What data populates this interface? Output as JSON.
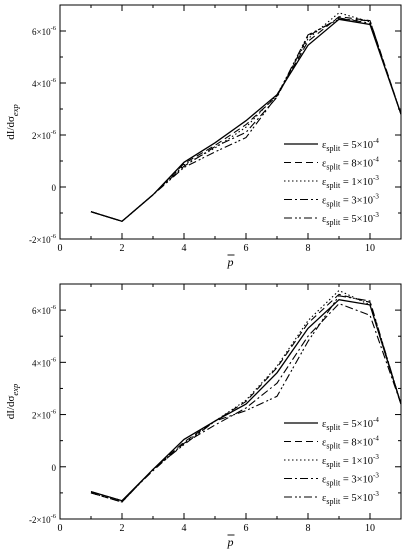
{
  "chart_data": [
    {
      "type": "line",
      "ylabel": "dI/dσ",
      "ylabel_sub": "exp",
      "xlabel": "p",
      "xlim": [
        0,
        11
      ],
      "ylim": [
        -2e-06,
        7e-06
      ],
      "xticks": [
        0,
        2,
        4,
        6,
        8,
        10
      ],
      "yticks": [
        -2e-06,
        0,
        2e-06,
        4e-06,
        6e-06
      ],
      "ytick_labels": [
        {
          "mant": "-2×10",
          "exp": "-6"
        },
        {
          "mant": "0",
          "exp": ""
        },
        {
          "mant": "2×10",
          "exp": "-6"
        },
        {
          "mant": "4×10",
          "exp": "-6"
        },
        {
          "mant": "6×10",
          "exp": "-6"
        }
      ],
      "legend_position": "bottom-right",
      "x": [
        1,
        2,
        3,
        4,
        5,
        6,
        7,
        8,
        9,
        10,
        11
      ],
      "series": [
        {
          "label": "ε",
          "sub": "split",
          "val": " = 5×10",
          "exp": "-4",
          "dash": "",
          "values": [
            -9.5e-07,
            -1.32e-06,
            -3e-07,
            9.5e-07,
            1.7e-06,
            2.55e-06,
            3.55e-06,
            5.45e-06,
            6.45e-06,
            6.25e-06,
            2.8e-06
          ]
        },
        {
          "label": "ε",
          "sub": "split",
          "val": " = 8×10",
          "exp": "-4",
          "dash": "7,4",
          "values": [
            -9.5e-07,
            -1.32e-06,
            -3e-07,
            9e-07,
            1.6e-06,
            2.4e-06,
            3.5e-06,
            5.6e-06,
            6.55e-06,
            6.4e-06,
            2.8e-06
          ]
        },
        {
          "label": "ε",
          "sub": "split",
          "val": " = 1×10",
          "exp": "-3",
          "dash": "1.5,2.5",
          "values": [
            -9.5e-07,
            -1.32e-06,
            -3e-07,
            8.5e-07,
            1.5e-06,
            2.3e-06,
            3.55e-06,
            5.7e-06,
            6.7e-06,
            6.35e-06,
            2.8e-06
          ]
        },
        {
          "label": "ε",
          "sub": "split",
          "val": " = 3×10",
          "exp": "-3",
          "dash": "8,3,2,3",
          "values": [
            -9.5e-07,
            -1.32e-06,
            -3e-07,
            8e-07,
            1.55e-06,
            2.1e-06,
            3.45e-06,
            5.8e-06,
            6.5e-06,
            6.3e-06,
            2.8e-06
          ]
        },
        {
          "label": "ε",
          "sub": "split",
          "val": " = 5×10",
          "exp": "-3",
          "dash": "8,3,2,2,2,3",
          "values": [
            -9.5e-07,
            -1.32e-06,
            -3e-07,
            7.5e-07,
            1.35e-06,
            1.9e-06,
            3.5e-06,
            5.85e-06,
            6.45e-06,
            6.4e-06,
            2.8e-06
          ]
        }
      ]
    },
    {
      "type": "line",
      "ylabel": "dI/dσ",
      "ylabel_sub": "exp",
      "xlabel": "p",
      "xlim": [
        0,
        11
      ],
      "ylim": [
        -2e-06,
        7e-06
      ],
      "xticks": [
        0,
        2,
        4,
        6,
        8,
        10
      ],
      "yticks": [
        -2e-06,
        0,
        2e-06,
        4e-06,
        6e-06
      ],
      "ytick_labels": [
        {
          "mant": "-2×10",
          "exp": "-6"
        },
        {
          "mant": "0",
          "exp": ""
        },
        {
          "mant": "2×10",
          "exp": "-6"
        },
        {
          "mant": "4×10",
          "exp": "-6"
        },
        {
          "mant": "6×10",
          "exp": "-6"
        }
      ],
      "legend_position": "bottom-right",
      "x": [
        1,
        2,
        3,
        4,
        5,
        6,
        7,
        8,
        9,
        10,
        11
      ],
      "series": [
        {
          "label": "ε",
          "sub": "split",
          "val": " = 5×10",
          "exp": "-4",
          "dash": "",
          "values": [
            -9.5e-07,
            -1.3e-06,
            -1e-07,
            1.05e-06,
            1.75e-06,
            2.4e-06,
            3.6e-06,
            5.3e-06,
            6.4e-06,
            6.2e-06,
            2.4e-06
          ]
        },
        {
          "label": "ε",
          "sub": "split",
          "val": " = 8×10",
          "exp": "-4",
          "dash": "7,4",
          "values": [
            -1e-06,
            -1.35e-06,
            -1e-07,
            9.5e-07,
            1.75e-06,
            2.5e-06,
            3.8e-06,
            5.5e-06,
            6.6e-06,
            6.3e-06,
            2.4e-06
          ]
        },
        {
          "label": "ε",
          "sub": "split",
          "val": " = 1×10",
          "exp": "-3",
          "dash": "1.5,2.5",
          "values": [
            -1e-06,
            -1.35e-06,
            -1e-07,
            9e-07,
            1.75e-06,
            2.55e-06,
            3.85e-06,
            5.6e-06,
            6.75e-06,
            6.2e-06,
            2.4e-06
          ]
        },
        {
          "label": "ε",
          "sub": "split",
          "val": " = 3×10",
          "exp": "-3",
          "dash": "8,3,2,3",
          "values": [
            -9.5e-07,
            -1.3e-06,
            -1.5e-07,
            9e-07,
            1.6e-06,
            2.25e-06,
            3.2e-06,
            5e-06,
            6.25e-06,
            5.8e-06,
            2.4e-06
          ]
        },
        {
          "label": "ε",
          "sub": "split",
          "val": " = 5×10",
          "exp": "-3",
          "dash": "8,3,2,2,2,3",
          "values": [
            -1e-06,
            -1.35e-06,
            -1e-07,
            8.5e-07,
            1.75e-06,
            2.15e-06,
            2.7e-06,
            4.8e-06,
            6.55e-06,
            6.35e-06,
            2.4e-06
          ]
        }
      ]
    }
  ]
}
